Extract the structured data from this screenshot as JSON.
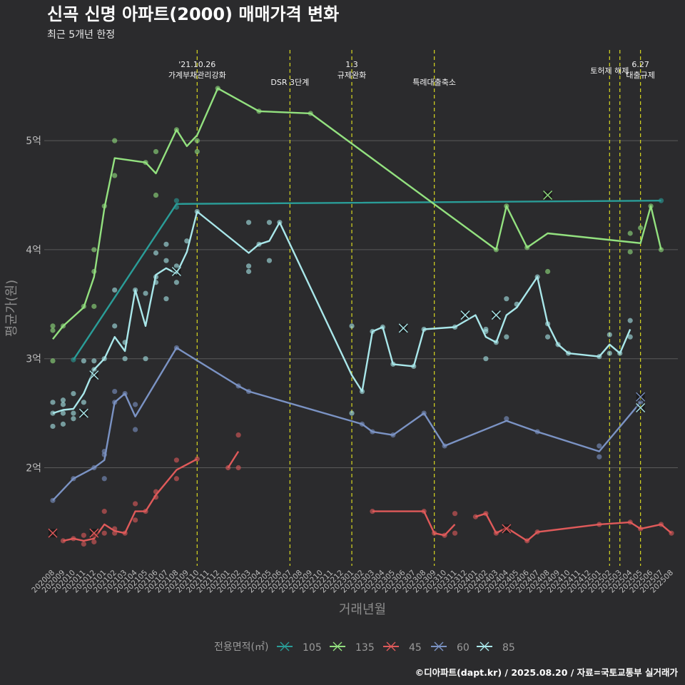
{
  "title": "신곡 신명 아파트(2000) 매매가격 변화",
  "subtitle": "최근 5개년 한정",
  "caption": "©디아파트(dapt.kr) / 2025.08.20 / 자료=국토교통부 실거래가",
  "colors": {
    "background": "#2b2b2d",
    "grid": "#5a5a5a",
    "event_line": "#d8d820",
    "105": "#2a9d98",
    "135": "#93e17f",
    "45": "#e05a5a",
    "60": "#7b93c4",
    "85": "#a9e7ea"
  },
  "chart_data": {
    "type": "line",
    "title": "신곡 신명 아파트(2000) 매매가격 변화",
    "subtitle": "최근 5개년 한정",
    "xlabel": "거래년월",
    "ylabel": "평균가(원)",
    "ylim": [
      1.1,
      5.95
    ],
    "y_ticks": [
      {
        "value": 2,
        "label": "2억"
      },
      {
        "value": 3,
        "label": "3억"
      },
      {
        "value": 4,
        "label": "4억"
      },
      {
        "value": 5,
        "label": "5억"
      }
    ],
    "x_categories": [
      "202008",
      "202009",
      "202010",
      "202011",
      "202012",
      "202101",
      "202102",
      "202103",
      "202104",
      "202105",
      "202106",
      "202107",
      "202108",
      "202109",
      "202110",
      "202111",
      "202112",
      "202201",
      "202202",
      "202203",
      "202204",
      "202205",
      "202206",
      "202207",
      "202208",
      "202209",
      "202210",
      "202211",
      "202212",
      "202301",
      "202302",
      "202303",
      "202304",
      "202305",
      "202306",
      "202307",
      "202308",
      "202309",
      "202310",
      "202311",
      "202312",
      "202401",
      "202402",
      "202403",
      "202404",
      "202405",
      "202406",
      "202407",
      "202408",
      "202409",
      "202410",
      "202411",
      "202412",
      "202501",
      "202502",
      "202503",
      "202504",
      "202505",
      "202506",
      "202507",
      "202508"
    ],
    "grid": true,
    "legend_title": "전용면적(㎡)",
    "legend_position": "bottom",
    "events": [
      {
        "x": 14.0,
        "label": "'21.10.26\n가계부채관리강화"
      },
      {
        "x": 23.0,
        "label": "DSR 3단계"
      },
      {
        "x": 29.0,
        "label": "1.3\n규제완화"
      },
      {
        "x": 37.0,
        "label": "특례대출축소"
      },
      {
        "x": 54.0,
        "label": "토허제 해제"
      },
      {
        "x": 55.0,
        "label": ""
      },
      {
        "x": 57.0,
        "label": "6.27\n대출규제"
      }
    ],
    "series": [
      {
        "name": "105",
        "line": [
          [
            2,
            2.99
          ],
          [
            12,
            4.42
          ],
          [
            59,
            4.45
          ]
        ],
        "points": [
          [
            2,
            2.99
          ],
          [
            12,
            4.45
          ],
          [
            12,
            4.39
          ],
          [
            59,
            4.45
          ]
        ],
        "latest": []
      },
      {
        "name": "135",
        "line": [
          [
            0,
            3.18
          ],
          [
            1,
            3.3
          ],
          [
            3,
            3.47
          ],
          [
            4,
            3.75
          ],
          [
            5,
            4.38
          ],
          [
            6,
            4.84
          ],
          [
            9,
            4.8
          ],
          [
            10,
            4.7
          ],
          [
            12,
            5.1
          ],
          [
            13,
            4.95
          ],
          [
            14,
            5.05
          ],
          [
            16,
            5.48
          ],
          [
            20,
            5.27
          ],
          [
            25,
            5.25
          ],
          [
            43,
            4.0
          ],
          [
            44,
            4.4
          ],
          [
            46,
            4.02
          ],
          [
            48,
            4.15
          ],
          [
            57,
            4.06
          ],
          [
            58,
            4.4
          ],
          [
            59,
            4.0
          ]
        ],
        "points": [
          [
            0,
            3.3
          ],
          [
            0,
            3.26
          ],
          [
            0,
            2.98
          ],
          [
            1,
            3.3
          ],
          [
            3,
            3.48
          ],
          [
            4,
            3.48
          ],
          [
            4,
            3.8
          ],
          [
            4,
            4.0
          ],
          [
            5,
            4.4
          ],
          [
            6,
            5.0
          ],
          [
            6,
            4.68
          ],
          [
            9,
            4.8
          ],
          [
            10,
            4.9
          ],
          [
            10,
            4.5
          ],
          [
            12,
            5.1
          ],
          [
            14,
            5.0
          ],
          [
            14,
            4.9
          ],
          [
            16,
            5.48
          ],
          [
            20,
            5.27
          ],
          [
            25,
            5.25
          ],
          [
            43,
            4.0
          ],
          [
            44,
            4.4
          ],
          [
            46,
            4.02
          ],
          [
            48,
            3.8
          ],
          [
            56,
            4.15
          ],
          [
            56,
            3.98
          ],
          [
            57,
            4.2
          ],
          [
            58,
            4.4
          ],
          [
            59,
            4.0
          ]
        ],
        "latest": [
          [
            48,
            4.5
          ]
        ]
      },
      {
        "name": "45",
        "line_segments": [
          [
            [
              1,
              1.33
            ],
            [
              2,
              1.35
            ],
            [
              3,
              1.33
            ],
            [
              4,
              1.35
            ],
            [
              5,
              1.48
            ],
            [
              6,
              1.42
            ],
            [
              7,
              1.4
            ],
            [
              8,
              1.6
            ],
            [
              9,
              1.6
            ],
            [
              10,
              1.75
            ],
            [
              12,
              1.98
            ],
            [
              14,
              2.08
            ]
          ],
          [
            [
              17,
              2.0
            ],
            [
              18,
              2.15
            ]
          ],
          [
            [
              31,
              1.6
            ],
            [
              36,
              1.6
            ],
            [
              37,
              1.4
            ],
            [
              38,
              1.38
            ],
            [
              39,
              1.48
            ]
          ],
          [
            [
              41,
              1.55
            ],
            [
              42,
              1.58
            ],
            [
              43,
              1.4
            ],
            [
              44,
              1.45
            ],
            [
              46,
              1.33
            ],
            [
              47,
              1.41
            ],
            [
              53,
              1.48
            ],
            [
              56,
              1.5
            ],
            [
              57,
              1.44
            ],
            [
              59,
              1.48
            ],
            [
              60,
              1.4
            ]
          ]
        ],
        "points": [
          [
            1,
            1.33
          ],
          [
            2,
            1.35
          ],
          [
            3,
            1.38
          ],
          [
            3,
            1.3
          ],
          [
            4,
            1.32
          ],
          [
            4,
            1.38
          ],
          [
            5,
            1.6
          ],
          [
            5,
            1.4
          ],
          [
            6,
            1.4
          ],
          [
            6,
            1.44
          ],
          [
            7,
            1.4
          ],
          [
            8,
            1.67
          ],
          [
            8,
            1.52
          ],
          [
            9,
            1.6
          ],
          [
            10,
            1.78
          ],
          [
            10,
            1.73
          ],
          [
            12,
            2.07
          ],
          [
            12,
            1.9
          ],
          [
            14,
            2.08
          ],
          [
            17,
            2.0
          ],
          [
            18,
            2.3
          ],
          [
            18,
            2.0
          ],
          [
            31,
            1.6
          ],
          [
            36,
            1.6
          ],
          [
            37,
            1.4
          ],
          [
            38,
            1.38
          ],
          [
            39,
            1.58
          ],
          [
            39,
            1.4
          ],
          [
            41,
            1.55
          ],
          [
            42,
            1.58
          ],
          [
            43,
            1.4
          ],
          [
            46,
            1.33
          ],
          [
            47,
            1.41
          ],
          [
            53,
            1.48
          ],
          [
            56,
            1.5
          ],
          [
            57,
            1.44
          ],
          [
            59,
            1.48
          ],
          [
            60,
            1.4
          ]
        ],
        "latest": [
          [
            0,
            1.4
          ],
          [
            4,
            1.4
          ],
          [
            44,
            1.44
          ]
        ]
      },
      {
        "name": "60",
        "line": [
          [
            0,
            1.7
          ],
          [
            2,
            1.9
          ],
          [
            4,
            2.0
          ],
          [
            5,
            2.07
          ],
          [
            6,
            2.6
          ],
          [
            7,
            2.68
          ],
          [
            8,
            2.47
          ],
          [
            12,
            3.1
          ],
          [
            18,
            2.75
          ],
          [
            19,
            2.7
          ],
          [
            30,
            2.4
          ],
          [
            31,
            2.33
          ],
          [
            33,
            2.3
          ],
          [
            36,
            2.5
          ],
          [
            38,
            2.2
          ],
          [
            44,
            2.43
          ],
          [
            47,
            2.33
          ],
          [
            53,
            2.15
          ],
          [
            57,
            2.6
          ]
        ],
        "points": [
          [
            0,
            1.7
          ],
          [
            2,
            1.9
          ],
          [
            4,
            2.0
          ],
          [
            5,
            2.15
          ],
          [
            5,
            2.12
          ],
          [
            5,
            1.9
          ],
          [
            6,
            2.6
          ],
          [
            6,
            2.7
          ],
          [
            7,
            2.68
          ],
          [
            8,
            2.58
          ],
          [
            8,
            2.35
          ],
          [
            12,
            3.1
          ],
          [
            18,
            2.75
          ],
          [
            19,
            2.7
          ],
          [
            30,
            2.4
          ],
          [
            31,
            2.33
          ],
          [
            33,
            2.3
          ],
          [
            36,
            2.5
          ],
          [
            38,
            2.2
          ],
          [
            44,
            2.45
          ],
          [
            47,
            2.33
          ],
          [
            53,
            2.2
          ],
          [
            53,
            2.1
          ],
          [
            57,
            2.6
          ]
        ],
        "latest": [
          [
            57,
            2.65
          ]
        ]
      },
      {
        "name": "85",
        "line": [
          [
            0,
            2.5
          ],
          [
            1,
            2.53
          ],
          [
            2,
            2.54
          ],
          [
            3,
            2.68
          ],
          [
            4,
            2.9
          ],
          [
            5,
            3.0
          ],
          [
            6,
            3.2
          ],
          [
            7,
            3.07
          ],
          [
            8,
            3.63
          ],
          [
            9,
            3.3
          ],
          [
            10,
            3.77
          ],
          [
            11,
            3.83
          ],
          [
            12,
            3.78
          ],
          [
            13,
            3.98
          ],
          [
            14,
            4.35
          ],
          [
            19,
            3.97
          ],
          [
            20,
            4.05
          ],
          [
            21,
            4.08
          ],
          [
            22,
            4.25
          ],
          [
            29,
            2.85
          ],
          [
            30,
            2.7
          ],
          [
            31,
            3.25
          ],
          [
            32,
            3.29
          ],
          [
            33,
            2.95
          ],
          [
            35,
            2.93
          ],
          [
            36,
            3.27
          ],
          [
            39,
            3.29
          ],
          [
            41,
            3.4
          ],
          [
            42,
            3.2
          ],
          [
            43,
            3.15
          ],
          [
            44,
            3.4
          ],
          [
            45,
            3.47
          ],
          [
            47,
            3.75
          ],
          [
            48,
            3.32
          ],
          [
            49,
            3.13
          ],
          [
            50,
            3.05
          ],
          [
            53,
            3.02
          ],
          [
            54,
            3.13
          ],
          [
            55,
            3.05
          ],
          [
            56,
            3.27
          ]
        ],
        "points": [
          [
            0,
            2.6
          ],
          [
            0,
            2.5
          ],
          [
            0,
            2.38
          ],
          [
            1,
            2.62
          ],
          [
            1,
            2.58
          ],
          [
            1,
            2.5
          ],
          [
            1,
            2.4
          ],
          [
            2,
            2.68
          ],
          [
            2,
            2.5
          ],
          [
            2,
            2.45
          ],
          [
            3,
            2.98
          ],
          [
            3,
            2.6
          ],
          [
            4,
            2.98
          ],
          [
            4,
            2.9
          ],
          [
            5,
            3.0
          ],
          [
            6,
            3.63
          ],
          [
            6,
            3.3
          ],
          [
            7,
            3.15
          ],
          [
            7,
            3.0
          ],
          [
            8,
            3.63
          ],
          [
            9,
            3.6
          ],
          [
            9,
            3.0
          ],
          [
            10,
            3.97
          ],
          [
            10,
            3.75
          ],
          [
            10,
            3.7
          ],
          [
            11,
            4.05
          ],
          [
            11,
            3.9
          ],
          [
            11,
            3.55
          ],
          [
            12,
            3.85
          ],
          [
            12,
            3.7
          ],
          [
            13,
            4.08
          ],
          [
            14,
            4.35
          ],
          [
            19,
            4.25
          ],
          [
            19,
            3.85
          ],
          [
            19,
            3.8
          ],
          [
            20,
            4.05
          ],
          [
            21,
            4.25
          ],
          [
            21,
            3.9
          ],
          [
            22,
            4.25
          ],
          [
            29,
            3.3
          ],
          [
            29,
            2.5
          ],
          [
            30,
            2.7
          ],
          [
            31,
            3.25
          ],
          [
            32,
            3.29
          ],
          [
            33,
            2.95
          ],
          [
            35,
            2.93
          ],
          [
            36,
            3.27
          ],
          [
            39,
            3.29
          ],
          [
            42,
            3.27
          ],
          [
            42,
            3.25
          ],
          [
            42,
            3.0
          ],
          [
            43,
            3.15
          ],
          [
            44,
            3.55
          ],
          [
            44,
            3.2
          ],
          [
            45,
            3.5
          ],
          [
            47,
            3.75
          ],
          [
            48,
            3.32
          ],
          [
            48,
            3.2
          ],
          [
            49,
            3.13
          ],
          [
            50,
            3.05
          ],
          [
            53,
            3.02
          ],
          [
            54,
            3.22
          ],
          [
            54,
            3.05
          ],
          [
            55,
            3.05
          ],
          [
            56,
            3.35
          ],
          [
            56,
            3.2
          ]
        ],
        "latest": [
          [
            3,
            2.5
          ],
          [
            4,
            2.85
          ],
          [
            12,
            3.8
          ],
          [
            34,
            3.28
          ],
          [
            40,
            3.4
          ],
          [
            43,
            3.4
          ],
          [
            57,
            2.55
          ]
        ]
      }
    ]
  }
}
